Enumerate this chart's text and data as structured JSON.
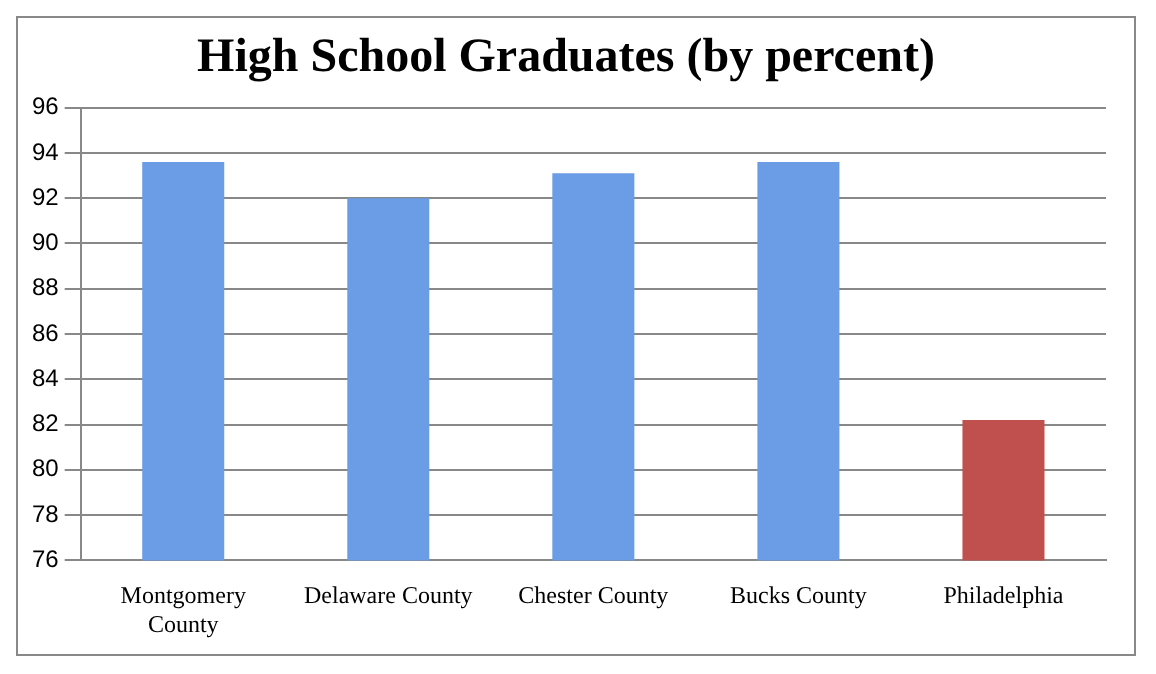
{
  "chart_data": {
    "type": "bar",
    "title": "High School Graduates (by percent)",
    "categories": [
      "Montgomery County",
      "Delaware County",
      "Chester County",
      "Bucks County",
      "Philadelphia"
    ],
    "values": [
      93.6,
      92.0,
      93.1,
      93.6,
      82.2
    ],
    "colors": [
      "#6a9de6",
      "#6a9de6",
      "#6a9de6",
      "#6a9de6",
      "#c0504d"
    ],
    "ylim": [
      76,
      96
    ],
    "yticks": [
      76,
      78,
      80,
      82,
      84,
      86,
      88,
      90,
      92,
      94,
      96
    ],
    "grid": "y",
    "legend": false
  }
}
